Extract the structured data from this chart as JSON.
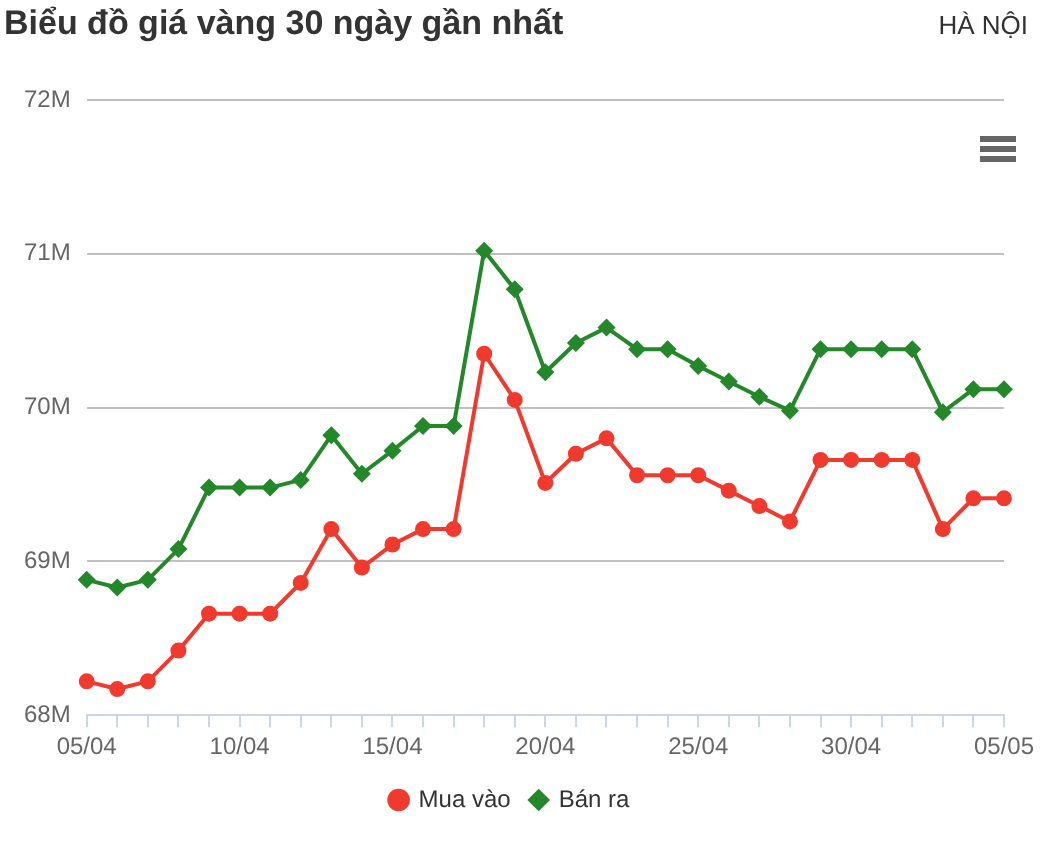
{
  "chart_data": {
    "type": "line",
    "title": "Biểu đồ giá vàng 30 ngày gần nhất",
    "subtitle": "HÀ NỘI",
    "categories": [
      "05/04",
      null,
      null,
      null,
      null,
      "10/04",
      null,
      null,
      null,
      null,
      "15/04",
      null,
      null,
      null,
      null,
      "20/04",
      null,
      null,
      null,
      null,
      "25/04",
      null,
      null,
      null,
      null,
      "30/04",
      null,
      null,
      null,
      null,
      "05/05"
    ],
    "series": [
      {
        "name": "Mua vào",
        "color": "#f03a2e",
        "marker": "circle",
        "values": [
          68.22,
          68.17,
          68.22,
          68.42,
          68.66,
          68.66,
          68.66,
          68.86,
          69.21,
          68.96,
          69.11,
          69.21,
          69.21,
          70.35,
          70.05,
          69.51,
          69.7,
          69.8,
          69.56,
          69.56,
          69.56,
          69.46,
          69.36,
          69.26,
          69.66,
          69.66,
          69.66,
          69.66,
          69.21,
          69.41,
          69.41
        ]
      },
      {
        "name": "Bán ra",
        "color": "#24882a",
        "marker": "diamond",
        "values": [
          68.88,
          68.83,
          68.88,
          69.08,
          69.48,
          69.48,
          69.48,
          69.53,
          69.82,
          69.57,
          69.72,
          69.88,
          69.88,
          71.02,
          70.77,
          70.23,
          70.42,
          70.52,
          70.38,
          70.38,
          70.27,
          70.17,
          70.07,
          69.98,
          70.38,
          70.38,
          70.38,
          70.38,
          69.97,
          70.12,
          70.12
        ]
      }
    ],
    "ylim": [
      68,
      72
    ],
    "yticks": [
      {
        "value": 68,
        "label": "68M"
      },
      {
        "value": 69,
        "label": "69M"
      },
      {
        "value": 70,
        "label": "70M"
      },
      {
        "value": 71,
        "label": "71M"
      },
      {
        "value": 72,
        "label": "72M"
      }
    ],
    "grid": "y",
    "legend": "bottom",
    "line_style": "solid"
  }
}
